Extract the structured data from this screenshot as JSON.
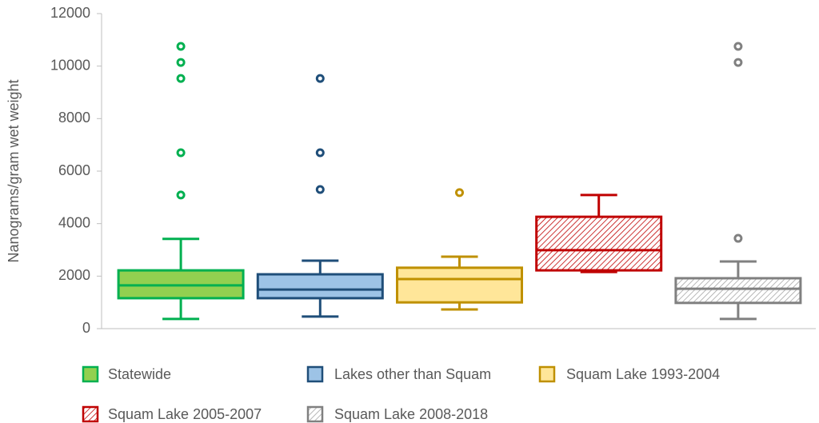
{
  "chart_data": {
    "type": "box",
    "y_label": "Nanograms/gram wet weight",
    "ylim": [
      0,
      12000
    ],
    "yticks": [
      0,
      2000,
      4000,
      6000,
      8000,
      10000,
      12000
    ],
    "series": [
      {
        "name": "Statewide",
        "color": "#00b050",
        "fill": "#92d050",
        "pattern": "solid",
        "whisker_low": 370,
        "q1": 1160,
        "median": 1650,
        "q3": 2220,
        "whisker_high": 3420,
        "outliers": [
          10750,
          10140,
          9530,
          6700,
          5090
        ]
      },
      {
        "name": "Lakes other than Squam",
        "color": "#1f4e79",
        "fill": "#9dc3e6",
        "pattern": "solid",
        "whisker_low": 460,
        "q1": 1160,
        "median": 1490,
        "q3": 2070,
        "whisker_high": 2590,
        "outliers": [
          9530,
          6700,
          5300
        ]
      },
      {
        "name": "Squam Lake 1993-2004",
        "color": "#bf9000",
        "fill": "#ffe699",
        "pattern": "solid",
        "whisker_low": 730,
        "q1": 1000,
        "median": 1890,
        "q3": 2320,
        "whisker_high": 2740,
        "outliers": [
          5180
        ]
      },
      {
        "name": "Squam Lake 2005-2007",
        "color": "#c00000",
        "fill": "#f4b6b6",
        "pattern": "hatch",
        "whisker_low": 2160,
        "q1": 2220,
        "median": 2990,
        "q3": 4260,
        "whisker_high": 5090,
        "outliers": []
      },
      {
        "name": "Squam Lake 2008-2018",
        "color": "#808080",
        "fill": "#d9d9d9",
        "pattern": "hatch",
        "whisker_low": 370,
        "q1": 980,
        "median": 1520,
        "q3": 1920,
        "whisker_high": 2560,
        "outliers": [
          10750,
          10140,
          3440
        ]
      }
    ]
  }
}
